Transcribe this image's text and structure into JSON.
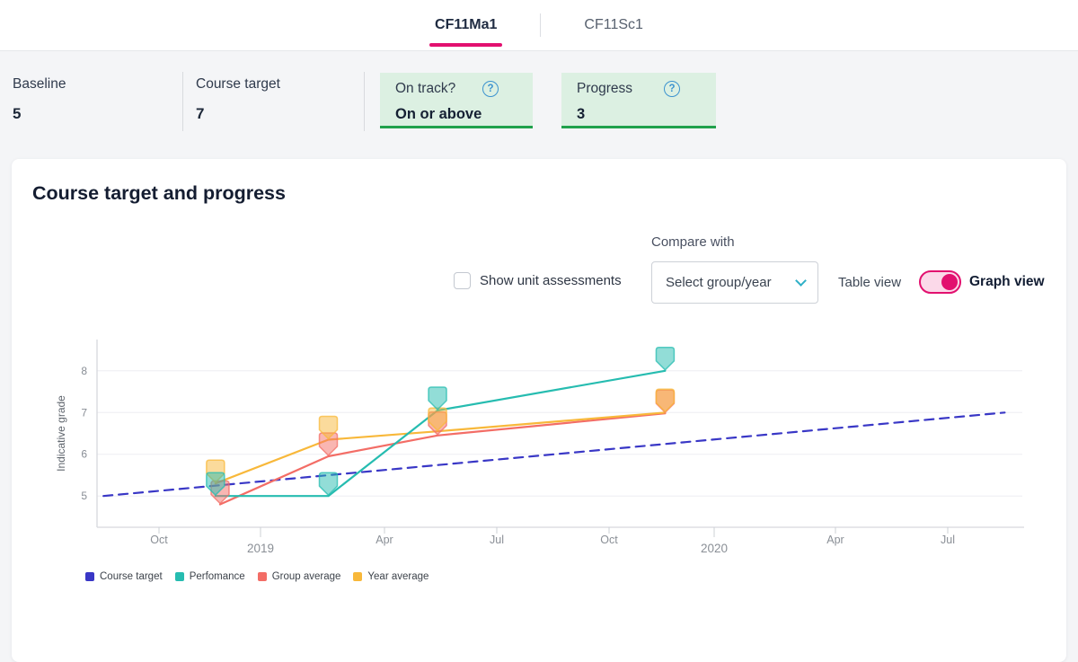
{
  "tabs": {
    "items": [
      {
        "label": "CF11Ma1",
        "active": true
      },
      {
        "label": "CF11Sc1",
        "active": false
      }
    ]
  },
  "icons": {
    "question_glyph": "?"
  },
  "stats": {
    "baseline": {
      "label": "Baseline",
      "value": "5"
    },
    "course_target": {
      "label": "Course target",
      "value": "7"
    },
    "on_track": {
      "label": "On track?",
      "value": "On or above"
    },
    "progress": {
      "label": "Progress",
      "value": "3"
    }
  },
  "card": {
    "title": "Course target and progress",
    "compare_with_label": "Compare with",
    "checkbox_label": "Show unit assessments",
    "checkbox_checked": false,
    "dropdown_value": "Select group/year",
    "table_view_label": "Table view",
    "graph_view_label": "Graph view",
    "toggle_state": "graph"
  },
  "colors": {
    "accent_pink": "#e2106f",
    "status_green_bg": "#dcf0e2",
    "status_green_border": "#21a14c",
    "help_blue": "#3c93cf",
    "dropdown_chevron_teal": "#2fb0c7"
  },
  "chart_data": {
    "type": "line",
    "title": "Course target and progress",
    "ylabel": "Indicative grade",
    "ylim": [
      4.25,
      8.75
    ],
    "yticks": [
      5,
      6,
      7,
      8
    ],
    "grid": true,
    "legend_position": "bottom-left",
    "xticks": [
      {
        "label": "Oct",
        "f": 0.067,
        "year": false
      },
      {
        "label": "2019",
        "f": 0.1767,
        "year": true
      },
      {
        "label": "Apr",
        "f": 0.3107,
        "year": false
      },
      {
        "label": "Jul",
        "f": 0.432,
        "year": false
      },
      {
        "label": "Oct",
        "f": 0.5534,
        "year": false
      },
      {
        "label": "2020",
        "f": 0.667,
        "year": true
      },
      {
        "label": "Apr",
        "f": 0.7981,
        "year": false
      },
      {
        "label": "Jul",
        "f": 0.9194,
        "year": false
      }
    ],
    "assessment_dates": [
      "Nov 2018",
      "Mar 2019",
      "May 2019",
      "Nov 2019"
    ],
    "series": [
      {
        "name": "Course target",
        "color": "#3937c6",
        "dashed": true,
        "markers": false,
        "x_frac": [
          0.007,
          0.981
        ],
        "values": [
          5.0,
          7.0
        ]
      },
      {
        "name": "Group average",
        "color": "#f36d66",
        "dashed": false,
        "markers": true,
        "x_frac": [
          0.133,
          0.25,
          0.368,
          0.614
        ],
        "values": [
          4.8,
          5.95,
          6.45,
          6.98
        ]
      },
      {
        "name": "Year average",
        "color": "#f8b83a",
        "dashed": false,
        "markers": true,
        "x_frac": [
          0.128,
          0.25,
          0.368,
          0.614
        ],
        "values": [
          5.3,
          6.35,
          6.55,
          7.0
        ]
      },
      {
        "name": "Perfomance",
        "color": "#26bcb0",
        "dashed": false,
        "markers": true,
        "x_frac": [
          0.128,
          0.25,
          0.368,
          0.614
        ],
        "values": [
          5.0,
          5.0,
          7.05,
          8.0
        ]
      }
    ],
    "legend_order": [
      "Course target",
      "Perfomance",
      "Group average",
      "Year average"
    ]
  }
}
